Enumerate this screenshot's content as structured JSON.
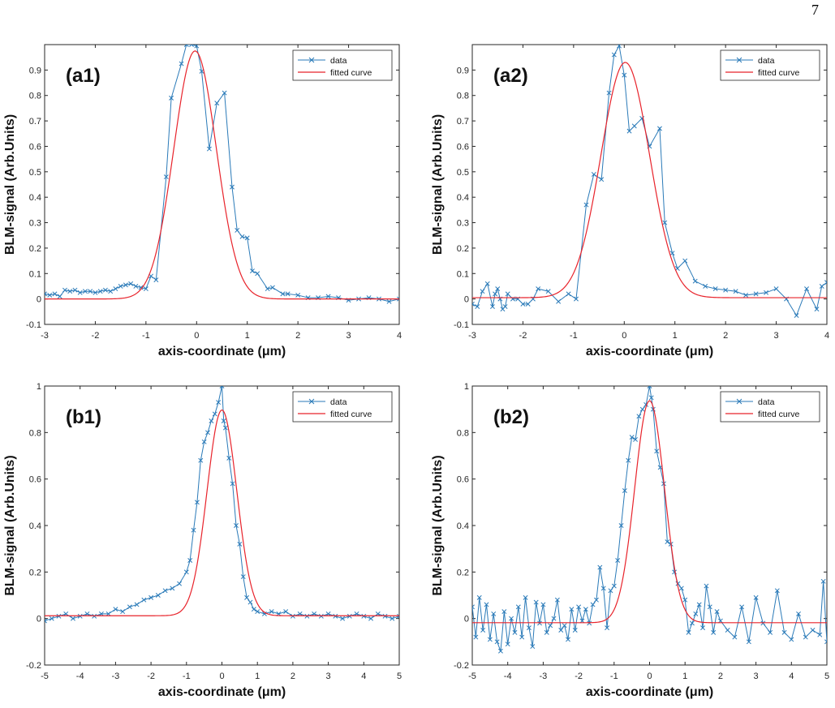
{
  "page_number": "7",
  "chart_data": [
    {
      "type": "line",
      "panel_label": "(a1)",
      "xlabel": "axis-coordinate (μm)",
      "ylabel": "BLM-signal (Arb.Units)",
      "xlim": [
        -3,
        4
      ],
      "ylim": [
        -0.1,
        1.0
      ],
      "xticks": [
        "-3",
        "-2",
        "-1",
        "0",
        "1",
        "2",
        "3",
        "4"
      ],
      "yticks": [
        "-0.1",
        "0",
        "0.1",
        "0.2",
        "0.3",
        "0.4",
        "0.5",
        "0.6",
        "0.7",
        "0.8",
        "0.9"
      ],
      "legend_position": "top-right",
      "colors": {
        "data": "#2a7ab8",
        "fit": "#e8232b"
      },
      "series": [
        {
          "name": "data",
          "marker": "x",
          "x": [
            -3.0,
            -2.9,
            -2.8,
            -2.7,
            -2.6,
            -2.5,
            -2.4,
            -2.3,
            -2.2,
            -2.1,
            -2.0,
            -1.9,
            -1.8,
            -1.7,
            -1.6,
            -1.5,
            -1.4,
            -1.3,
            -1.2,
            -1.1,
            -1.0,
            -0.9,
            -0.8,
            -0.6,
            -0.5,
            -0.3,
            -0.2,
            -0.1,
            0.0,
            0.1,
            0.25,
            0.4,
            0.55,
            0.7,
            0.8,
            0.9,
            1.0,
            1.1,
            1.2,
            1.4,
            1.5,
            1.7,
            1.8,
            2.0,
            2.2,
            2.4,
            2.6,
            2.8,
            3.0,
            3.2,
            3.4,
            3.6,
            3.8,
            4.0
          ],
          "y": [
            0.02,
            0.015,
            0.02,
            0.01,
            0.035,
            0.03,
            0.035,
            0.025,
            0.03,
            0.03,
            0.025,
            0.03,
            0.035,
            0.03,
            0.04,
            0.05,
            0.055,
            0.06,
            0.05,
            0.045,
            0.04,
            0.09,
            0.075,
            0.48,
            0.79,
            0.925,
            1.0,
            1.0,
            0.995,
            0.895,
            0.59,
            0.77,
            0.81,
            0.44,
            0.27,
            0.245,
            0.24,
            0.11,
            0.1,
            0.04,
            0.045,
            0.02,
            0.02,
            0.015,
            0.005,
            0.005,
            0.01,
            0.005,
            -0.005,
            0.0,
            0.005,
            0.0,
            -0.01,
            0.0
          ]
        },
        {
          "name": "fitted curve",
          "gaussian": {
            "amplitude": 0.975,
            "center": -0.03,
            "sigma": 0.42,
            "offset": 0.0
          }
        }
      ]
    },
    {
      "type": "line",
      "panel_label": "(a2)",
      "xlabel": "axis-coordinate (μm)",
      "ylabel": "BLM-signal (Arb.Units)",
      "xlim": [
        -3,
        4
      ],
      "ylim": [
        -0.1,
        1.0
      ],
      "xticks": [
        "-3",
        "-2",
        "-1",
        "0",
        "1",
        "2",
        "3",
        "4"
      ],
      "yticks": [
        "-0.1",
        "0",
        "0.1",
        "0.2",
        "0.3",
        "0.4",
        "0.5",
        "0.6",
        "0.7",
        "0.8",
        "0.9"
      ],
      "legend_position": "top-right",
      "colors": {
        "data": "#2a7ab8",
        "fit": "#e8232b"
      },
      "series": [
        {
          "name": "data",
          "marker": "x",
          "x": [
            -3.0,
            -2.9,
            -2.8,
            -2.7,
            -2.6,
            -2.55,
            -2.5,
            -2.45,
            -2.4,
            -2.35,
            -2.3,
            -2.2,
            -2.1,
            -2.0,
            -1.9,
            -1.8,
            -1.7,
            -1.5,
            -1.3,
            -1.1,
            -0.95,
            -0.75,
            -0.6,
            -0.45,
            -0.3,
            -0.2,
            -0.1,
            0.0,
            0.1,
            0.2,
            0.35,
            0.5,
            0.7,
            0.8,
            0.95,
            1.05,
            1.2,
            1.4,
            1.6,
            1.8,
            2.0,
            2.2,
            2.4,
            2.6,
            2.8,
            3.0,
            3.2,
            3.4,
            3.6,
            3.8,
            3.9,
            4.0
          ],
          "y": [
            -0.02,
            -0.03,
            0.03,
            0.06,
            -0.03,
            0.02,
            0.04,
            0.0,
            -0.04,
            -0.03,
            0.02,
            0.0,
            0.0,
            -0.02,
            -0.02,
            0.0,
            0.04,
            0.03,
            -0.01,
            0.02,
            0.0,
            0.37,
            0.49,
            0.47,
            0.81,
            0.96,
            0.995,
            0.88,
            0.66,
            0.68,
            0.71,
            0.6,
            0.67,
            0.3,
            0.18,
            0.12,
            0.15,
            0.07,
            0.05,
            0.04,
            0.035,
            0.03,
            0.015,
            0.02,
            0.025,
            0.04,
            0.0,
            -0.065,
            0.04,
            -0.04,
            0.05,
            0.065
          ]
        },
        {
          "name": "fitted curve",
          "gaussian": {
            "amplitude": 0.925,
            "center": 0.02,
            "sigma": 0.48,
            "offset": 0.005
          }
        }
      ]
    },
    {
      "type": "line",
      "panel_label": "(b1)",
      "xlabel": "axis-coordinate (μm)",
      "ylabel": "BLM-signal (Arb.Units)",
      "xlim": [
        -5,
        5
      ],
      "ylim": [
        -0.2,
        1.0
      ],
      "xticks": [
        "-5",
        "-4",
        "-3",
        "-2",
        "-1",
        "0",
        "1",
        "2",
        "3",
        "4",
        "5"
      ],
      "yticks": [
        "-0.2",
        "0",
        "0.2",
        "0.4",
        "0.6",
        "0.8",
        "1"
      ],
      "legend_position": "top-right",
      "colors": {
        "data": "#2a7ab8",
        "fit": "#e8232b"
      },
      "series": [
        {
          "name": "data",
          "marker": "x",
          "x": [
            -5.0,
            -4.8,
            -4.6,
            -4.4,
            -4.2,
            -4.0,
            -3.8,
            -3.6,
            -3.4,
            -3.2,
            -3.0,
            -2.8,
            -2.6,
            -2.4,
            -2.2,
            -2.0,
            -1.8,
            -1.6,
            -1.4,
            -1.2,
            -1.0,
            -0.9,
            -0.8,
            -0.7,
            -0.6,
            -0.5,
            -0.4,
            -0.3,
            -0.2,
            -0.1,
            0.0,
            0.05,
            0.1,
            0.2,
            0.3,
            0.4,
            0.5,
            0.6,
            0.7,
            0.8,
            0.9,
            1.0,
            1.2,
            1.4,
            1.6,
            1.8,
            2.0,
            2.2,
            2.4,
            2.6,
            2.8,
            3.0,
            3.2,
            3.4,
            3.6,
            3.8,
            4.0,
            4.2,
            4.4,
            4.6,
            4.8,
            5.0
          ],
          "y": [
            -0.01,
            0.0,
            0.01,
            0.02,
            0.0,
            0.01,
            0.02,
            0.01,
            0.02,
            0.02,
            0.04,
            0.03,
            0.05,
            0.06,
            0.08,
            0.09,
            0.1,
            0.12,
            0.13,
            0.15,
            0.2,
            0.25,
            0.38,
            0.5,
            0.68,
            0.76,
            0.8,
            0.85,
            0.88,
            0.93,
            1.0,
            0.85,
            0.82,
            0.69,
            0.58,
            0.4,
            0.32,
            0.18,
            0.09,
            0.07,
            0.04,
            0.03,
            0.02,
            0.03,
            0.02,
            0.03,
            0.01,
            0.02,
            0.01,
            0.02,
            0.01,
            0.02,
            0.01,
            0.0,
            0.01,
            0.02,
            0.01,
            0.0,
            0.02,
            0.01,
            0.0,
            0.01
          ]
        },
        {
          "name": "fitted curve",
          "gaussian": {
            "amplitude": 0.885,
            "center": 0.0,
            "sigma": 0.42,
            "offset": 0.012
          }
        }
      ]
    },
    {
      "type": "line",
      "panel_label": "(b2)",
      "xlabel": "axis-coordinate (μm)",
      "ylabel": "BLM-signal (Arb.Units)",
      "xlim": [
        -5,
        5
      ],
      "ylim": [
        -0.2,
        1.0
      ],
      "xticks": [
        "-5",
        "-4",
        "-3",
        "-2",
        "-1",
        "0",
        "1",
        "2",
        "3",
        "4",
        "5"
      ],
      "yticks": [
        "-0.2",
        "0",
        "0.2",
        "0.4",
        "0.6",
        "0.8",
        "1"
      ],
      "legend_position": "top-right",
      "colors": {
        "data": "#2a7ab8",
        "fit": "#e8232b"
      },
      "series": [
        {
          "name": "data",
          "marker": "x",
          "x": [
            -5.0,
            -4.9,
            -4.8,
            -4.7,
            -4.6,
            -4.5,
            -4.4,
            -4.3,
            -4.2,
            -4.1,
            -4.0,
            -3.9,
            -3.8,
            -3.7,
            -3.6,
            -3.5,
            -3.4,
            -3.3,
            -3.2,
            -3.1,
            -3.0,
            -2.9,
            -2.8,
            -2.7,
            -2.6,
            -2.5,
            -2.4,
            -2.3,
            -2.2,
            -2.1,
            -2.0,
            -1.9,
            -1.8,
            -1.7,
            -1.6,
            -1.5,
            -1.4,
            -1.3,
            -1.2,
            -1.1,
            -1.0,
            -0.9,
            -0.8,
            -0.7,
            -0.6,
            -0.5,
            -0.4,
            -0.3,
            -0.2,
            -0.1,
            0.0,
            0.05,
            0.1,
            0.2,
            0.3,
            0.4,
            0.5,
            0.6,
            0.7,
            0.8,
            0.9,
            1.0,
            1.1,
            1.2,
            1.3,
            1.4,
            1.5,
            1.6,
            1.7,
            1.8,
            1.9,
            2.0,
            2.2,
            2.4,
            2.6,
            2.8,
            3.0,
            3.2,
            3.4,
            3.6,
            3.8,
            4.0,
            4.2,
            4.4,
            4.6,
            4.8,
            4.9,
            5.0
          ],
          "y": [
            0.05,
            -0.08,
            0.09,
            -0.05,
            0.06,
            -0.09,
            0.02,
            -0.1,
            -0.14,
            0.03,
            -0.11,
            0.0,
            -0.06,
            0.05,
            -0.08,
            0.09,
            -0.04,
            -0.12,
            0.07,
            -0.02,
            0.06,
            -0.06,
            -0.03,
            0.0,
            0.08,
            -0.05,
            -0.03,
            -0.09,
            0.04,
            -0.05,
            0.05,
            -0.01,
            0.04,
            -0.02,
            0.06,
            0.08,
            0.22,
            0.13,
            -0.04,
            0.12,
            0.14,
            0.25,
            0.4,
            0.55,
            0.68,
            0.78,
            0.77,
            0.87,
            0.9,
            0.92,
            1.0,
            0.95,
            0.9,
            0.72,
            0.65,
            0.58,
            0.33,
            0.32,
            0.2,
            0.15,
            0.13,
            0.08,
            -0.06,
            -0.02,
            0.02,
            0.06,
            -0.04,
            0.14,
            0.05,
            -0.06,
            0.03,
            -0.01,
            -0.05,
            -0.08,
            0.05,
            -0.1,
            0.09,
            -0.02,
            -0.06,
            0.12,
            -0.06,
            -0.09,
            0.02,
            -0.08,
            -0.05,
            -0.07,
            0.16,
            -0.1
          ]
        },
        {
          "name": "fitted curve",
          "gaussian": {
            "amplitude": 0.955,
            "center": 0.0,
            "sigma": 0.42,
            "offset": -0.018
          }
        }
      ]
    }
  ]
}
